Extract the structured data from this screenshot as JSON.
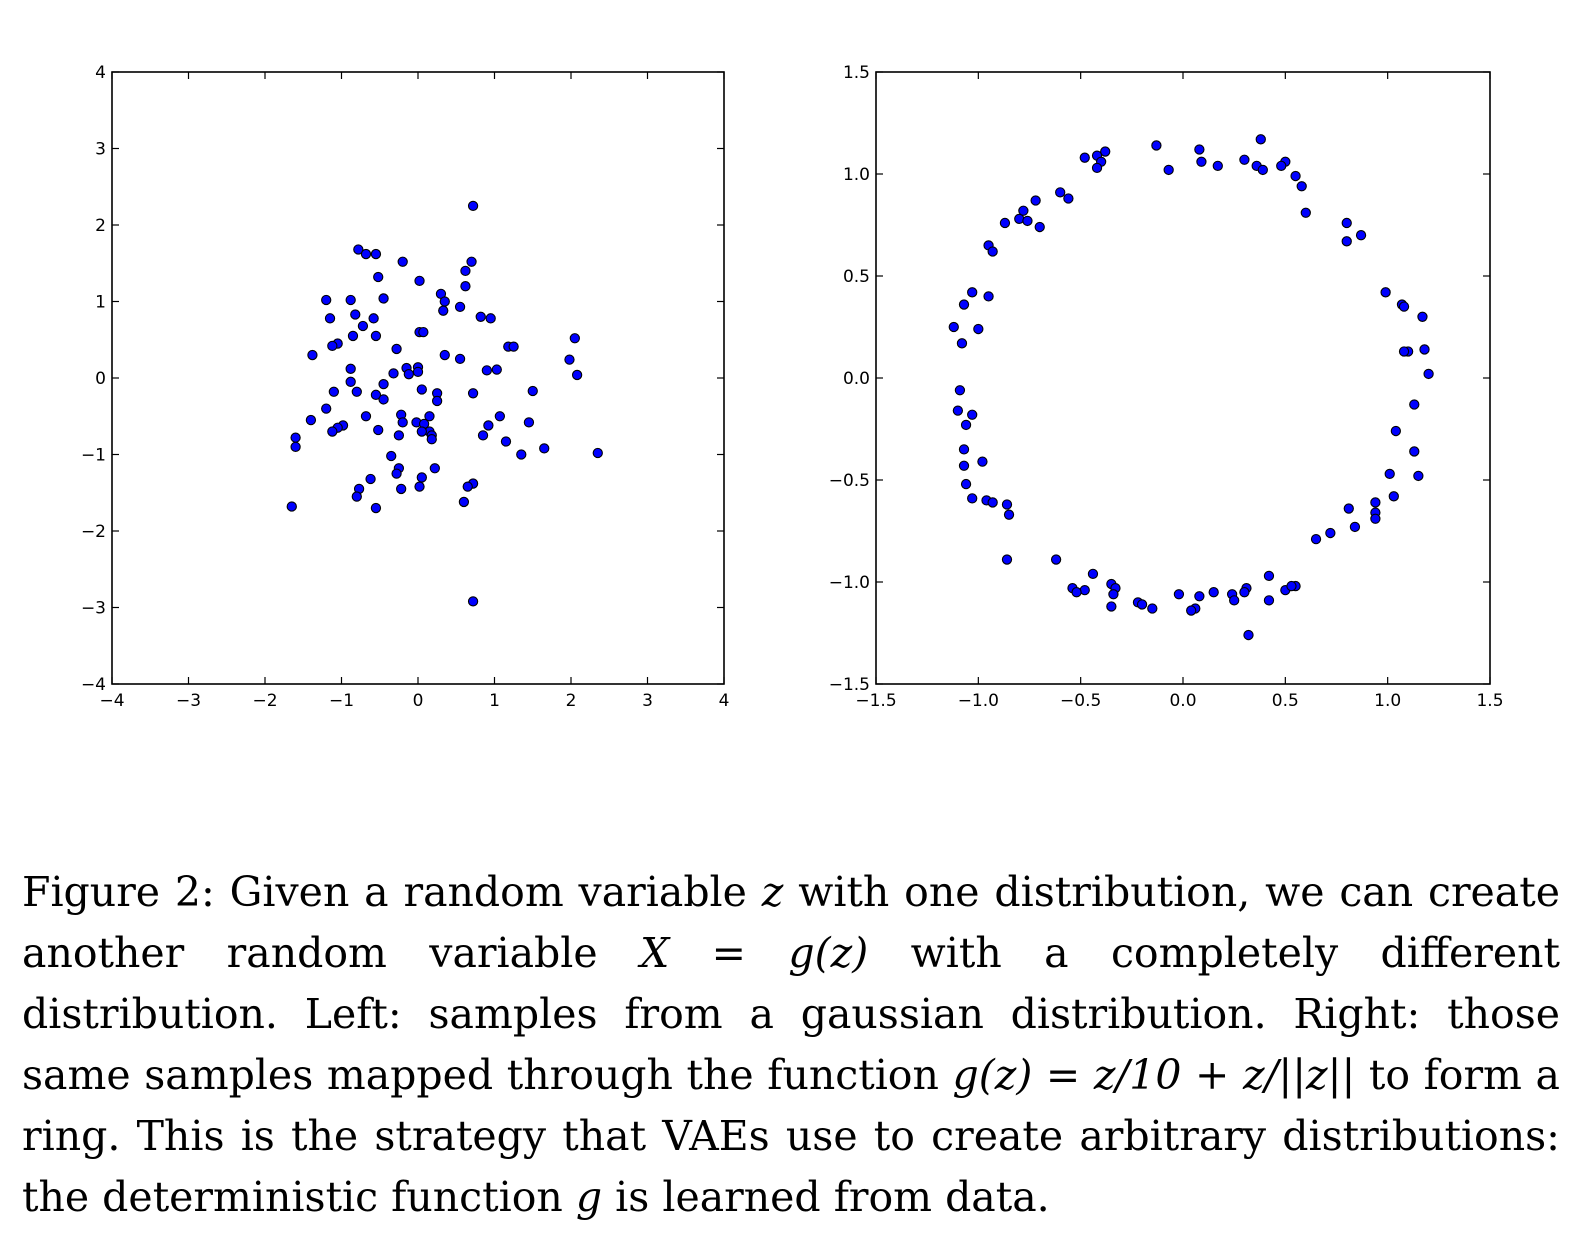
{
  "chart_data": [
    {
      "type": "scatter",
      "title": "",
      "xlabel": "",
      "ylabel": "",
      "xlim": [
        -4,
        4
      ],
      "ylim": [
        -4,
        4
      ],
      "grid": false,
      "marker_color": "#0000ff",
      "xticks": [
        "−4",
        "−3",
        "−2",
        "−1",
        "0",
        "1",
        "2",
        "3",
        "4"
      ],
      "yticks": [
        "−4",
        "−3",
        "−2",
        "−1",
        "0",
        "1",
        "2",
        "3",
        "4"
      ],
      "xtick_values": [
        -4,
        -3,
        -2,
        -1,
        0,
        1,
        2,
        3,
        4
      ],
      "ytick_values": [
        -4,
        -3,
        -2,
        -1,
        0,
        1,
        2,
        3,
        4
      ],
      "points": [
        [
          0.72,
          2.25
        ],
        [
          -0.78,
          1.68
        ],
        [
          -0.68,
          1.62
        ],
        [
          -0.55,
          1.62
        ],
        [
          -0.2,
          1.52
        ],
        [
          0.7,
          1.52
        ],
        [
          0.62,
          1.4
        ],
        [
          -0.52,
          1.32
        ],
        [
          0.02,
          1.27
        ],
        [
          0.62,
          1.2
        ],
        [
          0.3,
          1.1
        ],
        [
          -0.45,
          1.04
        ],
        [
          0.35,
          1.0
        ],
        [
          -1.2,
          1.02
        ],
        [
          -0.88,
          1.02
        ],
        [
          0.55,
          0.93
        ],
        [
          0.33,
          0.88
        ],
        [
          -0.82,
          0.83
        ],
        [
          0.82,
          0.8
        ],
        [
          0.95,
          0.78
        ],
        [
          -1.15,
          0.78
        ],
        [
          -0.58,
          0.78
        ],
        [
          -0.72,
          0.68
        ],
        [
          -0.55,
          0.55
        ],
        [
          -0.85,
          0.55
        ],
        [
          0.02,
          0.6
        ],
        [
          0.07,
          0.6
        ],
        [
          -1.05,
          0.45
        ],
        [
          -1.12,
          0.42
        ],
        [
          -0.28,
          0.38
        ],
        [
          1.18,
          0.41
        ],
        [
          1.25,
          0.41
        ],
        [
          -1.38,
          0.3
        ],
        [
          0.35,
          0.3
        ],
        [
          0.55,
          0.25
        ],
        [
          1.98,
          0.24
        ],
        [
          2.05,
          0.52
        ],
        [
          -0.88,
          0.12
        ],
        [
          0.0,
          0.14
        ],
        [
          -0.15,
          0.13
        ],
        [
          -0.12,
          0.05
        ],
        [
          0.0,
          0.08
        ],
        [
          0.9,
          0.1
        ],
        [
          1.03,
          0.11
        ],
        [
          2.08,
          0.04
        ],
        [
          -0.32,
          0.06
        ],
        [
          -0.88,
          -0.05
        ],
        [
          -0.45,
          -0.08
        ],
        [
          -0.8,
          -0.18
        ],
        [
          -1.1,
          -0.18
        ],
        [
          0.05,
          -0.15
        ],
        [
          0.25,
          -0.2
        ],
        [
          0.72,
          -0.2
        ],
        [
          1.5,
          -0.17
        ],
        [
          -0.55,
          -0.22
        ],
        [
          -0.45,
          -0.28
        ],
        [
          0.25,
          -0.3
        ],
        [
          -1.2,
          -0.4
        ],
        [
          -0.68,
          -0.5
        ],
        [
          -0.22,
          -0.48
        ],
        [
          0.15,
          -0.5
        ],
        [
          1.07,
          -0.5
        ],
        [
          -1.4,
          -0.55
        ],
        [
          -0.02,
          -0.58
        ],
        [
          -0.2,
          -0.58
        ],
        [
          0.08,
          -0.6
        ],
        [
          1.45,
          -0.58
        ],
        [
          0.92,
          -0.62
        ],
        [
          -0.98,
          -0.62
        ],
        [
          -1.05,
          -0.65
        ],
        [
          -0.52,
          -0.68
        ],
        [
          -1.12,
          -0.7
        ],
        [
          0.15,
          -0.7
        ],
        [
          0.18,
          -0.75
        ],
        [
          0.05,
          -0.7
        ],
        [
          -0.25,
          -0.75
        ],
        [
          0.18,
          -0.8
        ],
        [
          0.85,
          -0.75
        ],
        [
          -1.6,
          -0.78
        ],
        [
          1.15,
          -0.83
        ],
        [
          -1.6,
          -0.9
        ],
        [
          1.65,
          -0.92
        ],
        [
          1.35,
          -1.0
        ],
        [
          2.35,
          -0.98
        ],
        [
          -0.35,
          -1.02
        ],
        [
          -0.25,
          -1.18
        ],
        [
          0.22,
          -1.18
        ],
        [
          -0.28,
          -1.25
        ],
        [
          -0.62,
          -1.32
        ],
        [
          0.05,
          -1.3
        ],
        [
          0.72,
          -1.38
        ],
        [
          0.65,
          -1.42
        ],
        [
          -0.77,
          -1.45
        ],
        [
          0.02,
          -1.42
        ],
        [
          -0.22,
          -1.45
        ],
        [
          -0.8,
          -1.55
        ],
        [
          0.6,
          -1.62
        ],
        [
          -0.55,
          -1.7
        ],
        [
          -1.65,
          -1.68
        ],
        [
          0.72,
          -2.92
        ]
      ]
    },
    {
      "type": "scatter",
      "title": "",
      "xlabel": "",
      "ylabel": "",
      "xlim": [
        -1.5,
        1.5
      ],
      "ylim": [
        -1.5,
        1.5
      ],
      "grid": false,
      "marker_color": "#0000ff",
      "xticks": [
        "−1.5",
        "−1.0",
        "−0.5",
        "0.0",
        "0.5",
        "1.0",
        "1.5"
      ],
      "yticks": [
        "−1.5",
        "−1.0",
        "−0.5",
        "0.0",
        "0.5",
        "1.0",
        "1.5"
      ],
      "xtick_values": [
        -1.5,
        -1.0,
        -0.5,
        0.0,
        0.5,
        1.0,
        1.5
      ],
      "ytick_values": [
        -1.5,
        -1.0,
        -0.5,
        0.0,
        0.5,
        1.0,
        1.5
      ],
      "points": [
        [
          0.38,
          1.17
        ],
        [
          -0.13,
          1.14
        ],
        [
          -0.38,
          1.11
        ],
        [
          0.08,
          1.12
        ],
        [
          -0.48,
          1.08
        ],
        [
          -0.42,
          1.09
        ],
        [
          -0.4,
          1.06
        ],
        [
          0.3,
          1.07
        ],
        [
          0.5,
          1.06
        ],
        [
          0.48,
          1.04
        ],
        [
          0.36,
          1.04
        ],
        [
          0.09,
          1.06
        ],
        [
          0.17,
          1.04
        ],
        [
          -0.42,
          1.03
        ],
        [
          0.39,
          1.02
        ],
        [
          -0.07,
          1.02
        ],
        [
          0.55,
          0.99
        ],
        [
          0.58,
          0.94
        ],
        [
          -0.6,
          0.91
        ],
        [
          -0.56,
          0.88
        ],
        [
          -0.72,
          0.87
        ],
        [
          0.6,
          0.81
        ],
        [
          -0.78,
          0.82
        ],
        [
          -0.8,
          0.78
        ],
        [
          -0.76,
          0.77
        ],
        [
          0.8,
          0.76
        ],
        [
          -0.87,
          0.76
        ],
        [
          -0.7,
          0.74
        ],
        [
          0.87,
          0.7
        ],
        [
          0.8,
          0.67
        ],
        [
          -0.95,
          0.65
        ],
        [
          -0.93,
          0.62
        ],
        [
          0.99,
          0.42
        ],
        [
          -1.03,
          0.42
        ],
        [
          -0.95,
          0.4
        ],
        [
          -1.07,
          0.36
        ],
        [
          1.07,
          0.36
        ],
        [
          1.08,
          0.35
        ],
        [
          1.17,
          0.3
        ],
        [
          -1.12,
          0.25
        ],
        [
          -1.0,
          0.24
        ],
        [
          -1.08,
          0.17
        ],
        [
          1.18,
          0.14
        ],
        [
          1.1,
          0.13
        ],
        [
          1.08,
          0.13
        ],
        [
          1.2,
          0.02
        ],
        [
          -1.09,
          -0.06
        ],
        [
          1.13,
          -0.13
        ],
        [
          -1.1,
          -0.16
        ],
        [
          -1.03,
          -0.18
        ],
        [
          -1.06,
          -0.23
        ],
        [
          1.04,
          -0.26
        ],
        [
          -1.07,
          -0.35
        ],
        [
          1.13,
          -0.36
        ],
        [
          -0.98,
          -0.41
        ],
        [
          -1.07,
          -0.43
        ],
        [
          1.01,
          -0.47
        ],
        [
          1.15,
          -0.48
        ],
        [
          -1.06,
          -0.52
        ],
        [
          1.03,
          -0.58
        ],
        [
          -1.03,
          -0.59
        ],
        [
          -0.96,
          -0.6
        ],
        [
          -0.93,
          -0.61
        ],
        [
          0.94,
          -0.61
        ],
        [
          -0.86,
          -0.62
        ],
        [
          0.81,
          -0.64
        ],
        [
          0.94,
          -0.66
        ],
        [
          -0.85,
          -0.67
        ],
        [
          0.94,
          -0.69
        ],
        [
          0.84,
          -0.73
        ],
        [
          0.72,
          -0.76
        ],
        [
          0.65,
          -0.79
        ],
        [
          -0.86,
          -0.89
        ],
        [
          -0.62,
          -0.89
        ],
        [
          0.42,
          -0.97
        ],
        [
          -0.44,
          -0.96
        ],
        [
          -0.35,
          -1.01
        ],
        [
          -0.33,
          -1.03
        ],
        [
          0.55,
          -1.02
        ],
        [
          0.31,
          -1.03
        ],
        [
          -0.54,
          -1.03
        ],
        [
          -0.48,
          -1.04
        ],
        [
          0.5,
          -1.04
        ],
        [
          -0.52,
          -1.05
        ],
        [
          -0.34,
          -1.06
        ],
        [
          0.15,
          -1.05
        ],
        [
          0.24,
          -1.06
        ],
        [
          0.3,
          -1.05
        ],
        [
          -0.02,
          -1.06
        ],
        [
          0.08,
          -1.07
        ],
        [
          0.25,
          -1.09
        ],
        [
          0.42,
          -1.09
        ],
        [
          -0.22,
          -1.1
        ],
        [
          -0.2,
          -1.11
        ],
        [
          -0.35,
          -1.12
        ],
        [
          0.06,
          -1.13
        ],
        [
          -0.15,
          -1.13
        ],
        [
          0.04,
          -1.14
        ],
        [
          0.32,
          -1.26
        ],
        [
          0.53,
          -1.02
        ]
      ]
    }
  ],
  "caption": {
    "label": "Figure 2:",
    "s1": "Given a random variable",
    "z1": "z",
    "s2": "with one distribution, we can create another random variable",
    "X": "X",
    "eq1": "=",
    "g1": "g",
    "z2": "(z)",
    "s3": "with a completely different distribution. Left: samples from a gaussian distribution. Right: those same samples mapped through the function",
    "g2": "g",
    "z3": "(z)",
    "eq2": "=",
    "f1": "z/10 + z/||z||",
    "s4": "to form a ring. This is the strategy that VAEs use to create arbitrary distributions: the deterministic function",
    "g3": "g",
    "s5": "is learned from data."
  }
}
